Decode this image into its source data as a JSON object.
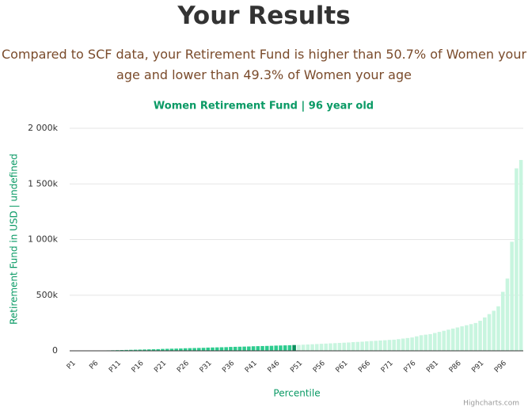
{
  "header": {
    "title": "Your Results",
    "subtitle": "Compared to SCF data, your Retirement Fund is higher than 50.7% of Women your age and lower than 49.3% of Women your age"
  },
  "chart_data": {
    "type": "bar",
    "title": "Women Retirement Fund | 96 year old",
    "y_label": "Retirement Fund in USD | undefined",
    "x_label": "Percentile",
    "credits": "Highcharts.com",
    "categories": [
      "P1",
      null,
      null,
      null,
      null,
      "P6",
      null,
      null,
      null,
      null,
      "P11",
      null,
      null,
      null,
      null,
      "P16",
      null,
      null,
      null,
      null,
      "P21",
      null,
      null,
      null,
      null,
      "P26",
      null,
      null,
      null,
      null,
      "P31",
      null,
      null,
      null,
      null,
      "P36",
      null,
      null,
      null,
      null,
      "P41",
      null,
      null,
      null,
      null,
      "P46",
      null,
      null,
      null,
      null,
      "P51",
      null,
      null,
      null,
      null,
      "P56",
      null,
      null,
      null,
      null,
      "P61",
      null,
      null,
      null,
      null,
      "P66",
      null,
      null,
      null,
      null,
      "P71",
      null,
      null,
      null,
      null,
      "P76",
      null,
      null,
      null,
      null,
      "P81",
      null,
      null,
      null,
      null,
      "P86",
      null,
      null,
      null,
      null,
      "P91",
      null,
      null,
      null,
      null,
      "P96",
      null,
      null,
      null,
      null
    ],
    "values": [
      0,
      0,
      500,
      1000,
      1500,
      2000,
      2500,
      3000,
      4000,
      5000,
      6000,
      7000,
      8000,
      9000,
      10000,
      11000,
      12000,
      13000,
      14000,
      15000,
      17000,
      18000,
      19000,
      20000,
      21000,
      23000,
      24000,
      25000,
      26000,
      27000,
      29000,
      30000,
      31000,
      32000,
      33000,
      35000,
      36000,
      37000,
      38000,
      39000,
      41000,
      42000,
      43000,
      44000,
      45000,
      47000,
      48000,
      49000,
      50000,
      52000,
      53000,
      55000,
      57000,
      59000,
      61000,
      63000,
      65000,
      67000,
      69000,
      71000,
      73000,
      75000,
      78000,
      80000,
      82000,
      85000,
      88000,
      90000,
      93000,
      95000,
      98000,
      100000,
      105000,
      110000,
      115000,
      120000,
      130000,
      140000,
      145000,
      150000,
      160000,
      170000,
      180000,
      190000,
      200000,
      210000,
      220000,
      230000,
      240000,
      250000,
      270000,
      300000,
      330000,
      360000,
      400000,
      530000,
      650000,
      980000,
      1640000,
      1715000
    ],
    "colors": {
      "below": "#2ecc8f",
      "current": "#0a8f5c",
      "above": "#c8f5df"
    },
    "current_index": 49,
    "ylim": [
      0,
      2000000
    ],
    "yticks": [
      0,
      {
        "value": 500000,
        "label": "500k"
      },
      {
        "value": 1000000,
        "label": "1 000k"
      },
      {
        "value": 1500000,
        "label": "1 500k"
      },
      {
        "value": 2000000,
        "label": "2 000k"
      }
    ],
    "grid": true
  }
}
